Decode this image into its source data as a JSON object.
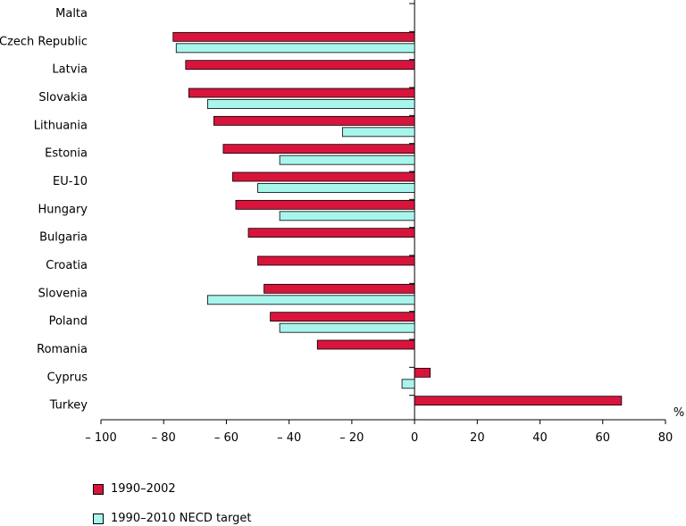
{
  "chart_data": {
    "type": "bar",
    "orientation": "horizontal",
    "categories": [
      "Malta",
      "Czech Republic",
      "Latvia",
      "Slovakia",
      "Lithuania",
      "Estonia",
      "EU-10",
      "Hungary",
      "Bulgaria",
      "Croatia",
      "Slovenia",
      "Poland",
      "Romania",
      "Cyprus",
      "Turkey"
    ],
    "series": [
      {
        "name": "1990–2002",
        "color": "#d9143c",
        "values": [
          null,
          -77,
          -73,
          -72,
          -64,
          -61,
          -58,
          -57,
          -53,
          -50,
          -48,
          -46,
          -31,
          5,
          66
        ]
      },
      {
        "name": "1990–2010 NECD target",
        "color": "#a8f5ec",
        "values": [
          null,
          -76,
          null,
          -66,
          -23,
          -43,
          -50,
          -43,
          null,
          null,
          -66,
          -43,
          null,
          -4,
          null
        ]
      }
    ],
    "xlabel": "%",
    "xlim": [
      -100,
      80
    ],
    "xticks": [
      -100,
      -80,
      -60,
      -40,
      -20,
      0,
      20,
      40,
      60,
      80
    ],
    "xtick_labels": [
      "– 100",
      "– 80",
      "– 60",
      "– 40",
      "– 20",
      "0",
      "20",
      "40",
      "60",
      "80"
    ],
    "grid": false,
    "legend_position": "bottom-left"
  }
}
